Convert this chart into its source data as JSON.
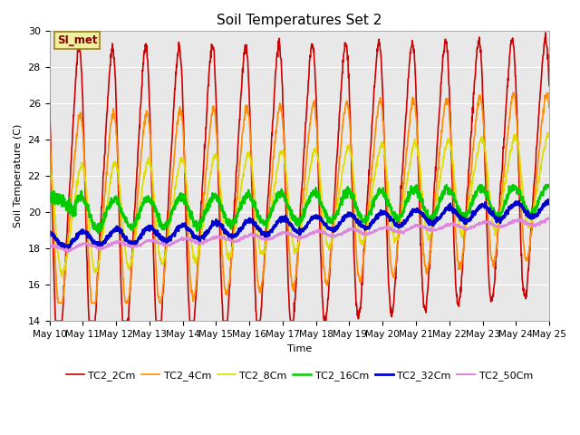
{
  "title": "Soil Temperatures Set 2",
  "xlabel": "Time",
  "ylabel": "Soil Temperature (C)",
  "ylim": [
    14,
    30
  ],
  "background_color": "#e8e8e8",
  "annotation_text": "SI_met",
  "annotation_color": "#8b0000",
  "annotation_bg": "#f0f0a0",
  "annotation_border": "#a08020",
  "x_tick_labels": [
    "May 10",
    "May 11",
    "May 12",
    "May 13",
    "May 14",
    "May 15",
    "May 16",
    "May 17",
    "May 18",
    "May 19",
    "May 20",
    "May 21",
    "May 22",
    "May 23",
    "May 24",
    "May 25"
  ],
  "series": [
    {
      "label": "TC2_2Cm",
      "color": "#cc0000",
      "lw": 1.2
    },
    {
      "label": "TC2_4Cm",
      "color": "#ff8c00",
      "lw": 1.2
    },
    {
      "label": "TC2_8Cm",
      "color": "#dddd00",
      "lw": 1.2
    },
    {
      "label": "TC2_16Cm",
      "color": "#00cc00",
      "lw": 1.8
    },
    {
      "label": "TC2_32Cm",
      "color": "#0000cc",
      "lw": 2.0
    },
    {
      "label": "TC2_50Cm",
      "color": "#dd88dd",
      "lw": 1.5
    }
  ],
  "legend_fontsize": 8,
  "title_fontsize": 11,
  "axis_fontsize": 8,
  "tick_fontsize": 7.5
}
